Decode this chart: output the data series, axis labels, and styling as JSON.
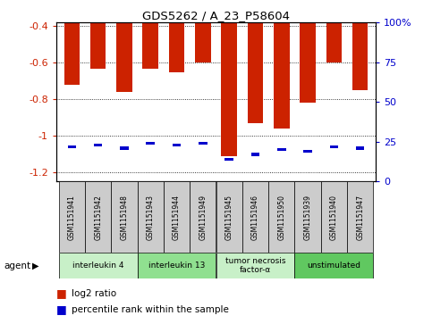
{
  "title": "GDS5262 / A_23_P58604",
  "samples": [
    "GSM1151941",
    "GSM1151942",
    "GSM1151948",
    "GSM1151943",
    "GSM1151944",
    "GSM1151949",
    "GSM1151945",
    "GSM1151946",
    "GSM1151950",
    "GSM1151939",
    "GSM1151940",
    "GSM1151947"
  ],
  "log2_ratio": [
    -0.72,
    -0.63,
    -0.76,
    -0.63,
    -0.65,
    -0.6,
    -1.11,
    -0.93,
    -0.96,
    -0.82,
    -0.6,
    -0.75
  ],
  "percentile_rank": [
    22,
    23,
    21,
    24,
    23,
    24,
    14,
    17,
    20,
    19,
    22,
    21
  ],
  "groups": [
    {
      "label": "interleukin 4",
      "start": 0,
      "end": 3,
      "color": "#c8f0c8"
    },
    {
      "label": "interleukin 13",
      "start": 3,
      "end": 6,
      "color": "#90e090"
    },
    {
      "label": "tumor necrosis\nfactor-α",
      "start": 6,
      "end": 9,
      "color": "#c8f0c8"
    },
    {
      "label": "unstimulated",
      "start": 9,
      "end": 12,
      "color": "#60c860"
    }
  ],
  "ylim_left": [
    -1.25,
    -0.38
  ],
  "ylim_right": [
    0,
    100
  ],
  "yticks_left": [
    -1.2,
    -1.0,
    -0.8,
    -0.6,
    -0.4
  ],
  "yticks_right": [
    0,
    25,
    50,
    75,
    100
  ],
  "ytick_labels_left": [
    "-1.2",
    "-1",
    "-0.8",
    "-0.6",
    "-0.4"
  ],
  "ytick_labels_right": [
    "0",
    "25",
    "50",
    "75",
    "100%"
  ],
  "bar_color": "#cc2200",
  "percentile_color": "#0000cc",
  "grid_color": "#333333",
  "bg_color": "#ffffff",
  "agent_label": "agent",
  "legend_log2": "log2 ratio",
  "legend_pct": "percentile rank within the sample"
}
